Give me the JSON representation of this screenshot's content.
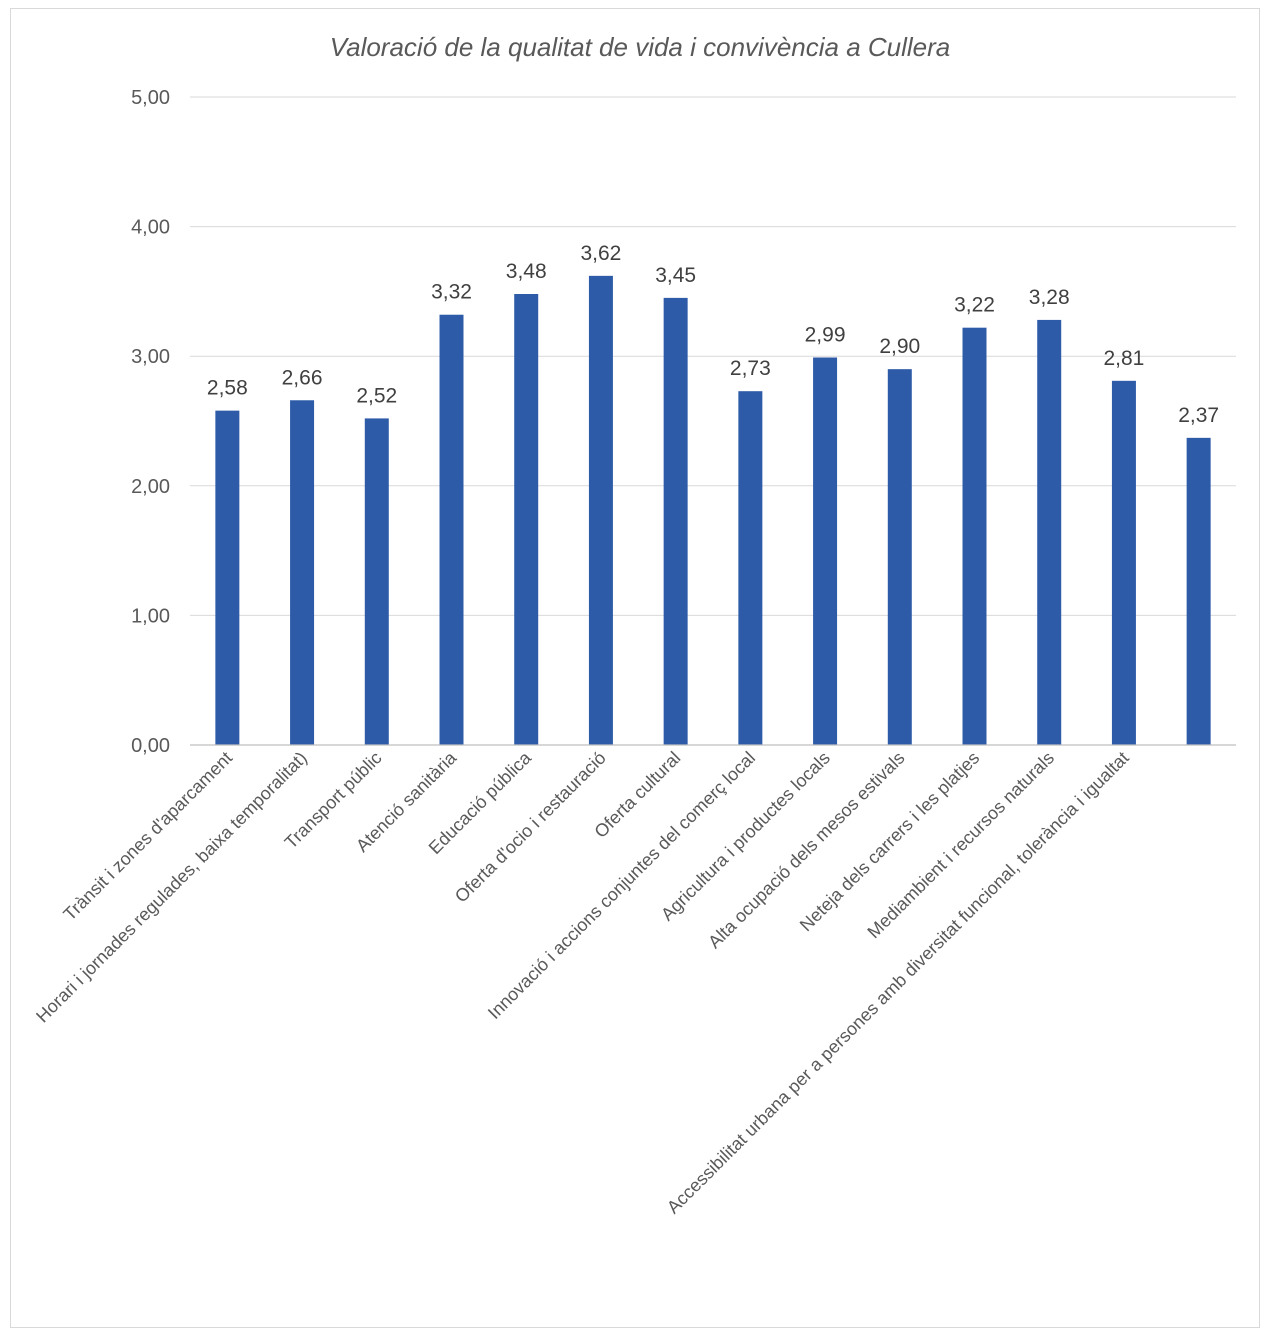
{
  "chart_data": {
    "type": "bar",
    "title": "Valoració de la qualitat de vida i convivència a Cullera",
    "categories": [
      "Trànsit i zones d'aparcament",
      "Horari i jornades regulades, baixa temporalitat)",
      "Transport públic",
      "Atenció sanitària",
      "Educació pública",
      "Oferta d'ocio i restauració",
      "Oferta cultural",
      "Innovació i accions conjuntes del comerç local",
      "Agricultura i productes locals",
      "Alta ocupació dels mesos estivals",
      "Neteja dels carrers i les platjes",
      "Mediambient i recursos naturals",
      "Accessibilitat urbana per a persones amb diversitat funcional, tolerància i igualtat",
      ""
    ],
    "values": [
      2.58,
      2.66,
      2.52,
      3.32,
      3.48,
      3.62,
      3.45,
      2.73,
      2.99,
      2.9,
      3.22,
      3.28,
      2.81,
      2.37
    ],
    "value_labels": [
      "2,58",
      "2,66",
      "2,52",
      "3,32",
      "3,48",
      "3,62",
      "3,45",
      "2,73",
      "2,99",
      "2,90",
      "3,22",
      "3,28",
      "2,81",
      "2,37"
    ],
    "ylim": [
      0,
      5
    ],
    "y_ticks": [
      "0,00",
      "1,00",
      "2,00",
      "3,00",
      "4,00",
      "5,00"
    ],
    "y_tick_values": [
      0,
      1,
      2,
      3,
      4,
      5
    ],
    "grid": true,
    "legend": "none",
    "bar_color": "#2E5BA8"
  }
}
